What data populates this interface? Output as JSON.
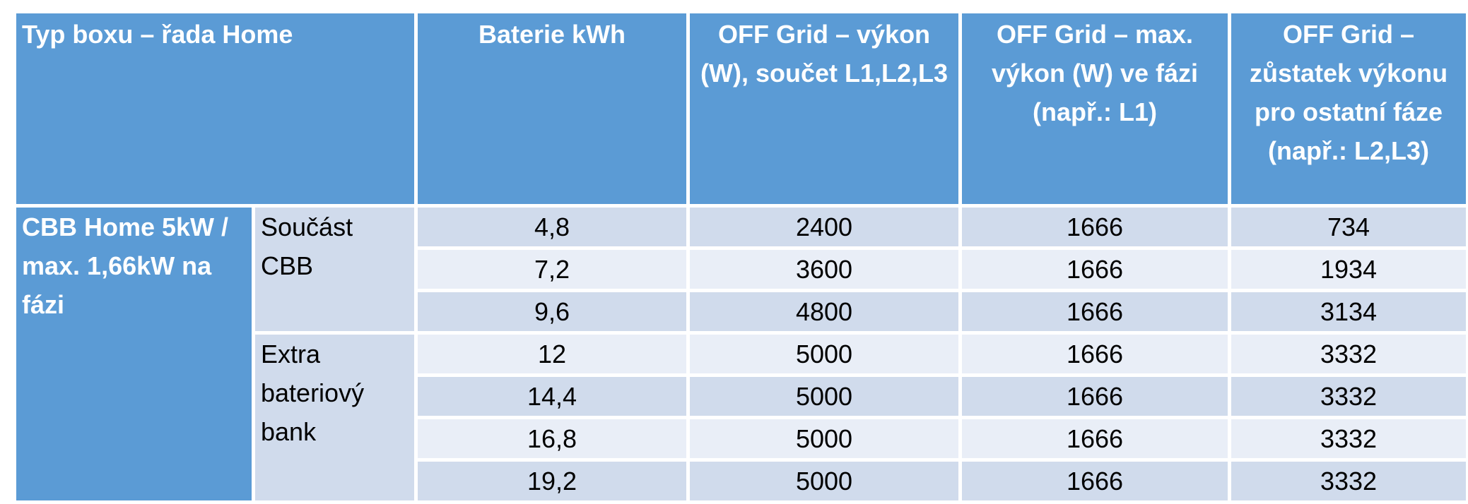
{
  "table": {
    "header": [
      "Typ boxu – řada Home",
      "Baterie kWh",
      "OFF Grid – výkon (W), součet L1,L2,L3",
      "OFF Grid – max. výkon (W) ve fázi (např.: L1)",
      "OFF Grid – zůstatek výkonu pro ostatní fáze (např.: L2,L3)"
    ],
    "group": "CBB Home 5kW / max. 1,66kW na fázi",
    "subgroups": [
      {
        "label": "Součást CBB",
        "rows": [
          [
            "4,8",
            "2400",
            "1666",
            "734"
          ],
          [
            "7,2",
            "3600",
            "1666",
            "1934"
          ],
          [
            "9,6",
            "4800",
            "1666",
            "3134"
          ]
        ]
      },
      {
        "label": "Extra bateriový bank",
        "rows": [
          [
            "12",
            "5000",
            "1666",
            "3332"
          ],
          [
            "14,4",
            "5000",
            "1666",
            "3332"
          ],
          [
            "16,8",
            "5000",
            "1666",
            "3332"
          ],
          [
            "19,2",
            "5000",
            "1666",
            "3332"
          ]
        ]
      }
    ]
  }
}
